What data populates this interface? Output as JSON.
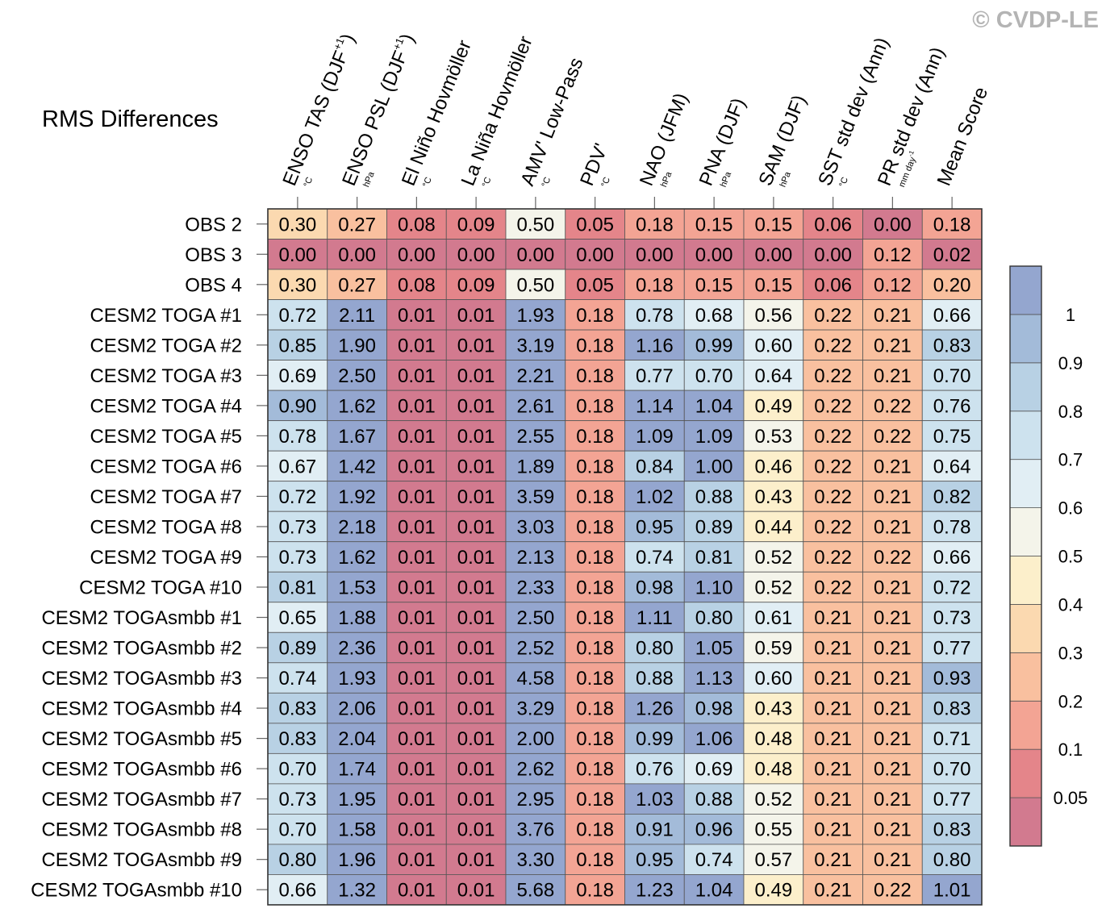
{
  "watermark": "© CVDP-LE",
  "colors": {
    "scale": [
      "#d27a8f",
      "#e4858a",
      "#f3a494",
      "#f9c09f",
      "#fbd9b0",
      "#fcefcb",
      "#f4f4ea",
      "#e1eef4",
      "#cde2ee",
      "#b8d1e4",
      "#a3bbd9",
      "#94a6cf"
    ],
    "grid": "#555555"
  },
  "chart_data": {
    "type": "heatmap",
    "title": "RMS Differences",
    "columns": [
      {
        "name": "ENSO TAS (DJF",
        "sup": "+1",
        "close": ")",
        "unit": "°C"
      },
      {
        "name": "ENSO PSL (DJF",
        "sup": "+1",
        "close": ")",
        "unit": "hPa"
      },
      {
        "name": "El Niño Hovmöller",
        "unit": "°C"
      },
      {
        "name": "La Niña Hovmöller",
        "unit": "°C"
      },
      {
        "name": "AMV' Low-Pass",
        "unit": "°C"
      },
      {
        "name": "PDV'",
        "unit": "°C"
      },
      {
        "name": "NAO (JFM)",
        "unit": "hPa"
      },
      {
        "name": "PNA (DJF)",
        "unit": "hPa"
      },
      {
        "name": "SAM (DJF)",
        "unit": "hPa"
      },
      {
        "name": "SST std dev (Ann)",
        "unit": "°C"
      },
      {
        "name": "PR std dev (Ann)",
        "unit": "mm day",
        "unit_sup": "-1"
      },
      {
        "name": "Mean Score",
        "unit": ""
      }
    ],
    "rows": [
      "OBS 2",
      "OBS 3",
      "OBS 4",
      "CESM2 TOGA #1",
      "CESM2 TOGA #2",
      "CESM2 TOGA #3",
      "CESM2 TOGA #4",
      "CESM2 TOGA #5",
      "CESM2 TOGA #6",
      "CESM2 TOGA #7",
      "CESM2 TOGA #8",
      "CESM2 TOGA #9",
      "CESM2 TOGA #10",
      "CESM2 TOGAsmbb #1",
      "CESM2 TOGAsmbb #2",
      "CESM2 TOGAsmbb #3",
      "CESM2 TOGAsmbb #4",
      "CESM2 TOGAsmbb #5",
      "CESM2 TOGAsmbb #6",
      "CESM2 TOGAsmbb #7",
      "CESM2 TOGAsmbb #8",
      "CESM2 TOGAsmbb #9",
      "CESM2 TOGAsmbb #10"
    ],
    "values": [
      [
        0.3,
        0.27,
        0.08,
        0.09,
        0.5,
        0.05,
        0.18,
        0.15,
        0.15,
        0.06,
        0.0,
        0.18
      ],
      [
        0.0,
        0.0,
        0.0,
        0.0,
        0.0,
        0.0,
        0.0,
        0.0,
        0.0,
        0.0,
        0.12,
        0.02
      ],
      [
        0.3,
        0.27,
        0.08,
        0.09,
        0.5,
        0.05,
        0.18,
        0.15,
        0.15,
        0.06,
        0.12,
        0.2
      ],
      [
        0.72,
        2.11,
        0.01,
        0.01,
        1.93,
        0.18,
        0.78,
        0.68,
        0.56,
        0.22,
        0.21,
        0.66
      ],
      [
        0.85,
        1.9,
        0.01,
        0.01,
        3.19,
        0.18,
        1.16,
        0.99,
        0.6,
        0.22,
        0.21,
        0.83
      ],
      [
        0.69,
        2.5,
        0.01,
        0.01,
        2.21,
        0.18,
        0.77,
        0.7,
        0.64,
        0.22,
        0.21,
        0.7
      ],
      [
        0.9,
        1.62,
        0.01,
        0.01,
        2.61,
        0.18,
        1.14,
        1.04,
        0.49,
        0.22,
        0.22,
        0.76
      ],
      [
        0.78,
        1.67,
        0.01,
        0.01,
        2.55,
        0.18,
        1.09,
        1.09,
        0.53,
        0.22,
        0.22,
        0.75
      ],
      [
        0.67,
        1.42,
        0.01,
        0.01,
        1.89,
        0.18,
        0.84,
        1.0,
        0.46,
        0.22,
        0.21,
        0.64
      ],
      [
        0.72,
        1.92,
        0.01,
        0.01,
        3.59,
        0.18,
        1.02,
        0.88,
        0.43,
        0.22,
        0.21,
        0.82
      ],
      [
        0.73,
        2.18,
        0.01,
        0.01,
        3.03,
        0.18,
        0.95,
        0.89,
        0.44,
        0.22,
        0.21,
        0.78
      ],
      [
        0.73,
        1.62,
        0.01,
        0.01,
        2.13,
        0.18,
        0.74,
        0.81,
        0.52,
        0.22,
        0.22,
        0.66
      ],
      [
        0.81,
        1.53,
        0.01,
        0.01,
        2.33,
        0.18,
        0.98,
        1.1,
        0.52,
        0.22,
        0.21,
        0.72
      ],
      [
        0.65,
        1.88,
        0.01,
        0.01,
        2.5,
        0.18,
        1.11,
        0.8,
        0.61,
        0.21,
        0.21,
        0.73
      ],
      [
        0.89,
        2.36,
        0.01,
        0.01,
        2.52,
        0.18,
        0.8,
        1.05,
        0.59,
        0.21,
        0.21,
        0.77
      ],
      [
        0.74,
        1.93,
        0.01,
        0.01,
        4.58,
        0.18,
        0.88,
        1.13,
        0.6,
        0.21,
        0.21,
        0.93
      ],
      [
        0.83,
        2.06,
        0.01,
        0.01,
        3.29,
        0.18,
        1.26,
        0.98,
        0.43,
        0.21,
        0.21,
        0.83
      ],
      [
        0.83,
        2.04,
        0.01,
        0.01,
        2.0,
        0.18,
        0.99,
        1.06,
        0.48,
        0.21,
        0.21,
        0.71
      ],
      [
        0.7,
        1.74,
        0.01,
        0.01,
        2.62,
        0.18,
        0.76,
        0.69,
        0.48,
        0.21,
        0.21,
        0.7
      ],
      [
        0.73,
        1.95,
        0.01,
        0.01,
        2.95,
        0.18,
        1.03,
        0.88,
        0.52,
        0.21,
        0.21,
        0.77
      ],
      [
        0.7,
        1.58,
        0.01,
        0.01,
        3.76,
        0.18,
        0.91,
        0.96,
        0.55,
        0.21,
        0.21,
        0.83
      ],
      [
        0.8,
        1.96,
        0.01,
        0.01,
        3.3,
        0.18,
        0.95,
        0.74,
        0.57,
        0.21,
        0.21,
        0.8
      ],
      [
        0.66,
        1.32,
        0.01,
        0.01,
        5.68,
        0.18,
        1.23,
        1.04,
        0.49,
        0.21,
        0.22,
        1.01
      ]
    ],
    "colorbar": {
      "levels": [
        0.05,
        0.1,
        0.2,
        0.3,
        0.4,
        0.5,
        0.6,
        0.7,
        0.8,
        0.9,
        1
      ],
      "labels": [
        "0.05",
        "0.1",
        "0.2",
        "0.3",
        "0.4",
        "0.5",
        "0.6",
        "0.7",
        "0.8",
        "0.9",
        "1"
      ]
    }
  }
}
